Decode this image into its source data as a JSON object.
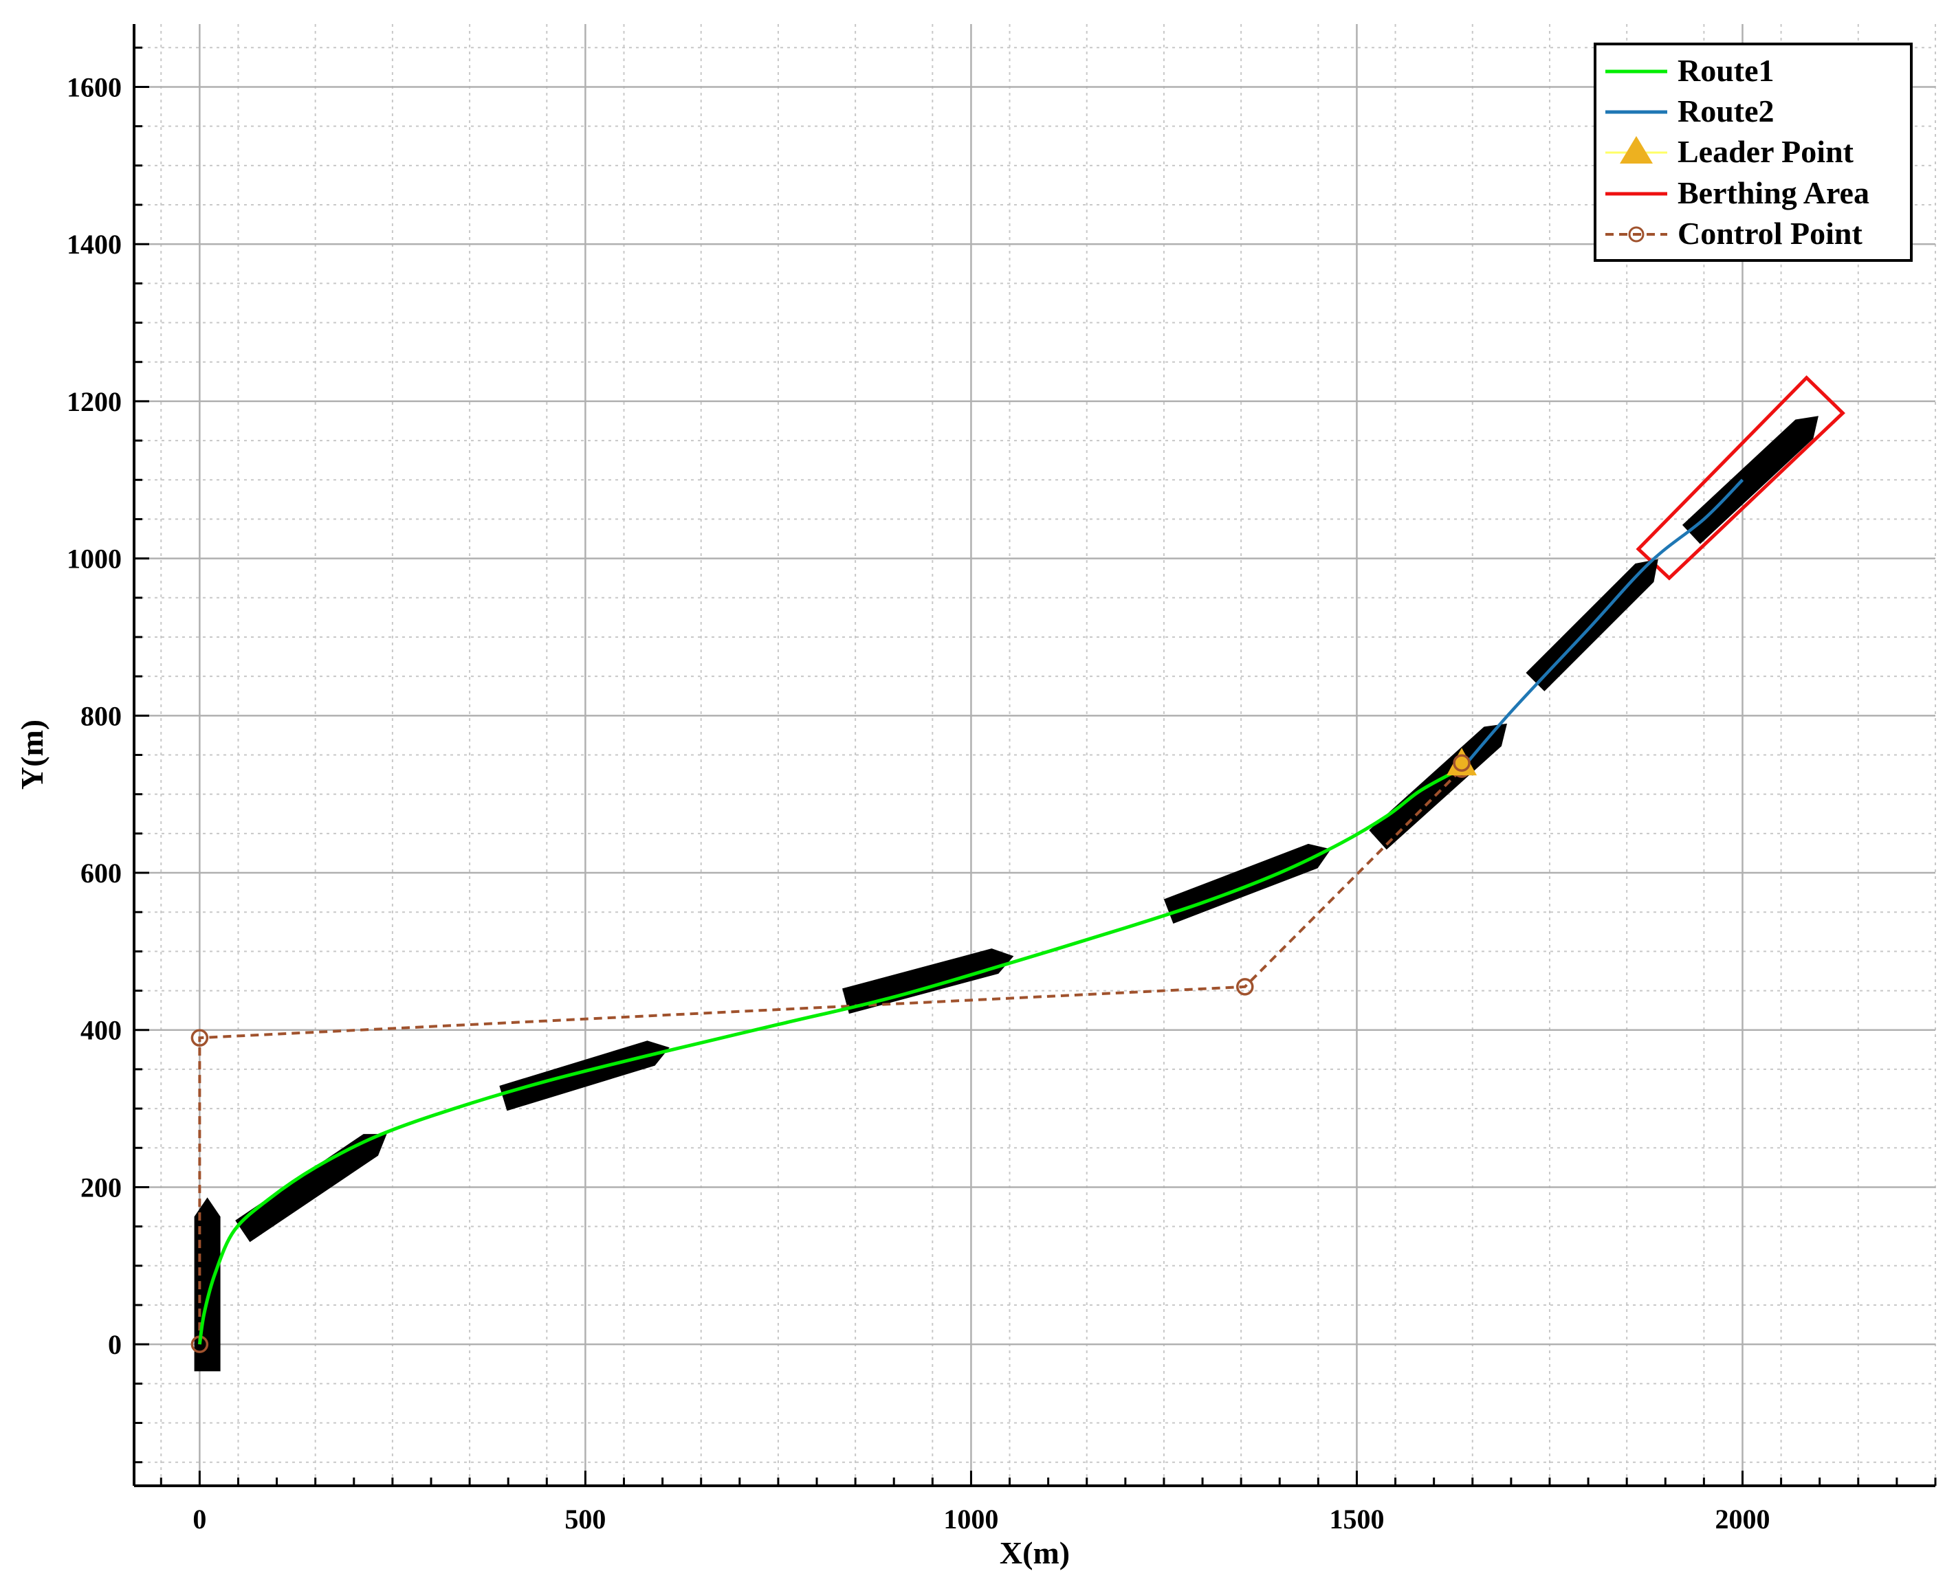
{
  "chart_data": {
    "type": "line",
    "xlabel": "X(m)",
    "ylabel": "Y(m)",
    "xlim": [
      -85,
      2250
    ],
    "ylim": [
      -180,
      1680
    ],
    "x_ticks": [
      0,
      500,
      1000,
      1500,
      2000
    ],
    "y_ticks": [
      0,
      200,
      400,
      600,
      800,
      1000,
      1200,
      1400,
      1600
    ],
    "grid": true,
    "minor_grid": true,
    "legend_position": "top-right",
    "legend": [
      "Route1",
      "Route2",
      "Leader Point",
      "Berthing Area",
      "Control Point"
    ],
    "colors": {
      "route1": "#00ee00",
      "route2": "#1f77b4",
      "leader": "#edb120",
      "berth": "#ee1111",
      "control": "#a0522d",
      "ship": "#000000"
    },
    "series": [
      {
        "name": "Route1",
        "x": [
          0,
          6,
          20,
          45,
          90,
          150,
          230,
          330,
          450,
          600,
          750,
          900,
          1050,
          1200,
          1300,
          1400,
          1480,
          1540,
          1580,
          1620,
          1636
        ],
        "y": [
          0,
          40,
          90,
          145,
          185,
          225,
          265,
          300,
          335,
          372,
          407,
          442,
          485,
          530,
          562,
          600,
          638,
          673,
          703,
          725,
          732
        ]
      },
      {
        "name": "Route2",
        "x": [
          1636,
          1700,
          1800,
          1880,
          1950,
          2000
        ],
        "y": [
          732,
          805,
          910,
          995,
          1050,
          1100
        ]
      },
      {
        "name": "Control Point",
        "x": [
          0,
          0,
          1355,
          1636
        ],
        "y": [
          0,
          390,
          455,
          732
        ]
      }
    ],
    "leader_point": {
      "x": 1636,
      "y": 738
    },
    "berthing_area": {
      "corners": [
        [
          1905,
          975
        ],
        [
          2130,
          1185
        ],
        [
          2083,
          1230
        ],
        [
          1865,
          1012
        ]
      ]
    },
    "ships": [
      {
        "x": 10,
        "y": 75,
        "heading": 90
      },
      {
        "x": 148,
        "y": 205,
        "heading": 34
      },
      {
        "x": 500,
        "y": 345,
        "heading": 17
      },
      {
        "x": 945,
        "y": 465,
        "heading": 15
      },
      {
        "x": 1360,
        "y": 590,
        "heading": 21
      },
      {
        "x": 1610,
        "y": 715,
        "heading": 42
      },
      {
        "x": 1810,
        "y": 920,
        "heading": 45
      },
      {
        "x": 2015,
        "y": 1105,
        "heading": 43
      }
    ]
  }
}
